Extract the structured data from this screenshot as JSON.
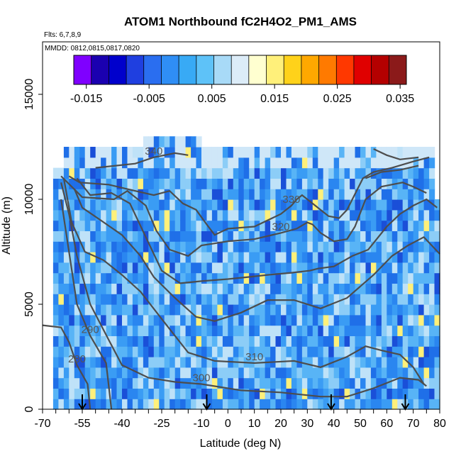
{
  "chart_data": {
    "type": "heatmap",
    "title": "ATOM1 Northbound fC2H4O2_PM1_AMS",
    "subtitle_flights": "Flts: 6,7,8,9",
    "subtitle_dates": "MMDD: 0812,0815,0817,0820",
    "xlabel": "Latitude (deg N)",
    "ylabel": "Altitude (m)",
    "xlim": [
      -70,
      80
    ],
    "ylim": [
      0,
      17500
    ],
    "x_ticks": [
      -70,
      -55,
      -40,
      -25,
      -10,
      0,
      10,
      20,
      30,
      40,
      50,
      60,
      70,
      80
    ],
    "y_ticks": [
      0,
      5000,
      10000,
      15000
    ],
    "colorbar": {
      "range": [
        -0.017,
        0.036
      ],
      "tick_values": [
        -0.015,
        -0.005,
        0.005,
        0.015,
        0.025,
        0.035
      ],
      "tick_labels": [
        "-0.015",
        "-0.005",
        "0.005",
        "0.015",
        "0.025",
        "0.035"
      ],
      "colors": [
        "#7f00ff",
        "#1a00b0",
        "#0000cc",
        "#1f3fe0",
        "#2a6ef0",
        "#2f8ef5",
        "#38aaf5",
        "#5ec2f8",
        "#a8daf7",
        "#dcecf8",
        "#ffffd0",
        "#fff07a",
        "#ffd21a",
        "#ffa800",
        "#ff7a00",
        "#ff3800",
        "#e00000",
        "#b40000",
        "#8b1a1a"
      ]
    },
    "contours": [
      {
        "label": "280",
        "points": [
          [
            -70,
            4000
          ],
          [
            -63,
            3900
          ],
          [
            -60,
            3200
          ],
          [
            -57,
            2100
          ],
          [
            -53,
            1200
          ],
          [
            -52,
            0
          ]
        ]
      },
      {
        "label": "290",
        "points": [
          [
            -63,
            10000
          ],
          [
            -60,
            7500
          ],
          [
            -57,
            5000
          ],
          [
            -52,
            3500
          ],
          [
            -46,
            2200
          ],
          [
            -44,
            0
          ]
        ]
      },
      {
        "label": "300",
        "points": [
          [
            -63,
            10800
          ],
          [
            -60,
            9300
          ],
          [
            -57,
            7300
          ],
          [
            -52,
            5000
          ],
          [
            -45,
            3300
          ],
          [
            -40,
            2100
          ],
          [
            -30,
            1500
          ],
          [
            -20,
            1300
          ],
          [
            -10,
            1200
          ],
          [
            5,
            900
          ],
          [
            20,
            800
          ],
          [
            35,
            600
          ],
          [
            45,
            600
          ],
          [
            55,
            1000
          ],
          [
            65,
            1500
          ],
          [
            72,
            1400
          ],
          [
            75,
            1100
          ]
        ]
      },
      {
        "label": "310",
        "points": [
          [
            -62,
            11000
          ],
          [
            -59,
            8900
          ],
          [
            -54,
            7500
          ],
          [
            -47,
            7100
          ],
          [
            -40,
            6400
          ],
          [
            -33,
            5600
          ],
          [
            -25,
            4300
          ],
          [
            -15,
            2700
          ],
          [
            -5,
            2300
          ],
          [
            10,
            2200
          ],
          [
            25,
            2300
          ],
          [
            35,
            2000
          ],
          [
            45,
            2500
          ],
          [
            52,
            3000
          ],
          [
            58,
            2800
          ],
          [
            65,
            2600
          ],
          [
            70,
            2000
          ],
          [
            74,
            1200
          ]
        ]
      },
      {
        "label": "",
        "points": [
          [
            -58,
            10500
          ],
          [
            -55,
            9600
          ],
          [
            -48,
            9000
          ],
          [
            -40,
            8300
          ],
          [
            -33,
            7300
          ],
          [
            -28,
            6300
          ],
          [
            -20,
            5300
          ],
          [
            -12,
            4400
          ],
          [
            -5,
            4200
          ],
          [
            5,
            4600
          ],
          [
            15,
            5200
          ],
          [
            25,
            5200
          ],
          [
            35,
            4800
          ],
          [
            45,
            5300
          ],
          [
            55,
            6400
          ],
          [
            62,
            7300
          ],
          [
            68,
            7800
          ],
          [
            74,
            8200
          ],
          [
            80,
            7400
          ]
        ]
      },
      {
        "label": "",
        "points": [
          [
            -57,
            11000
          ],
          [
            -52,
            10200
          ],
          [
            -44,
            10300
          ],
          [
            -37,
            9800
          ],
          [
            -31,
            8200
          ],
          [
            -25,
            6600
          ],
          [
            -18,
            6000
          ],
          [
            -10,
            6100
          ],
          [
            0,
            6200
          ],
          [
            8,
            6300
          ],
          [
            15,
            6400
          ],
          [
            24,
            6500
          ],
          [
            31,
            6600
          ],
          [
            34,
            6700
          ],
          [
            40,
            6800
          ],
          [
            47,
            7300
          ],
          [
            53,
            7600
          ],
          [
            60,
            8700
          ],
          [
            65,
            9300
          ],
          [
            70,
            9700
          ],
          [
            75,
            10000
          ],
          [
            79,
            9600
          ]
        ]
      },
      {
        "label": "320",
        "points": [
          [
            -63,
            11100
          ],
          [
            -59,
            10600
          ],
          [
            -55,
            10100
          ],
          [
            -43,
            10000
          ],
          [
            -38,
            10400
          ],
          [
            -31,
            9700
          ],
          [
            -27,
            8500
          ],
          [
            -22,
            7600
          ],
          [
            -15,
            7300
          ],
          [
            -10,
            7800
          ],
          [
            -5,
            7900
          ],
          [
            0,
            8000
          ],
          [
            10,
            8100
          ],
          [
            20,
            8400
          ],
          [
            26,
            8600
          ],
          [
            30,
            8900
          ],
          [
            32,
            8800
          ],
          [
            35,
            8400
          ],
          [
            40,
            8000
          ],
          [
            45,
            8100
          ],
          [
            48,
            8700
          ],
          [
            52,
            10000
          ],
          [
            58,
            10600
          ],
          [
            66,
            10800
          ],
          [
            70,
            10600
          ],
          [
            75,
            10300
          ]
        ]
      },
      {
        "label": "330",
        "points": [
          [
            -60,
            11100
          ],
          [
            -56,
            10800
          ],
          [
            -45,
            10700
          ],
          [
            -35,
            10400
          ],
          [
            -28,
            10200
          ],
          [
            -22,
            10400
          ],
          [
            -17,
            9800
          ],
          [
            -12,
            9500
          ],
          [
            -8,
            8800
          ],
          [
            -5,
            8300
          ],
          [
            0,
            8600
          ],
          [
            10,
            8700
          ],
          [
            20,
            9300
          ],
          [
            24,
            9700
          ],
          [
            26,
            10000
          ],
          [
            28,
            10200
          ],
          [
            33,
            9700
          ],
          [
            38,
            9200
          ],
          [
            42,
            9100
          ],
          [
            45,
            9500
          ],
          [
            47,
            10000
          ],
          [
            51,
            11000
          ],
          [
            55,
            11300
          ],
          [
            62,
            11500
          ],
          [
            70,
            11800
          ],
          [
            76,
            12000
          ]
        ]
      },
      {
        "label": "340",
        "points": [
          [
            -50,
            11500
          ],
          [
            -35,
            11700
          ],
          [
            -28,
            12000
          ],
          [
            -20,
            12200
          ],
          [
            -15,
            12100
          ]
        ]
      },
      {
        "label": "",
        "points": [
          [
            52,
            11000
          ],
          [
            58,
            11300
          ],
          [
            65,
            11400
          ],
          [
            72,
            11600
          ]
        ]
      },
      {
        "label": "",
        "points": [
          [
            55,
            12400
          ],
          [
            60,
            12100
          ],
          [
            65,
            11900
          ],
          [
            72,
            12000
          ]
        ]
      }
    ],
    "arrows_lat": [
      -55,
      -8,
      39,
      67
    ]
  }
}
